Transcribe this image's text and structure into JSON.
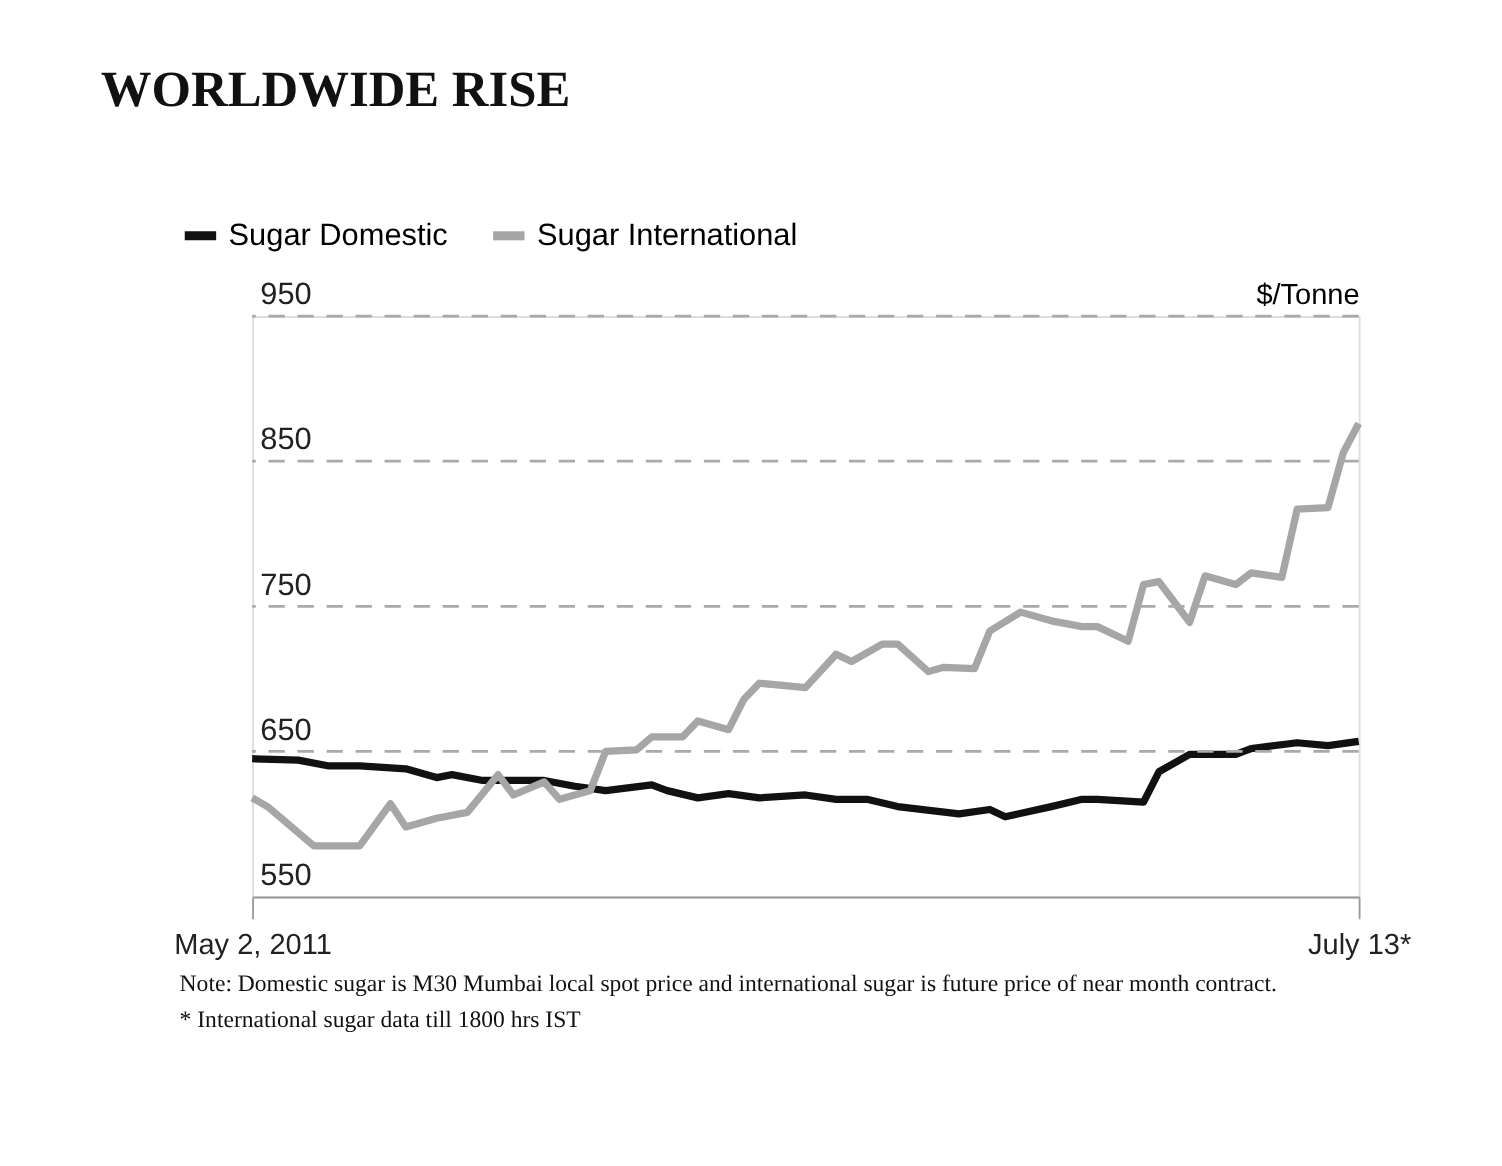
{
  "chart_data": {
    "type": "line",
    "title": "WORLDWIDE RISE",
    "ylabel": "$/Tonne",
    "xlim": [
      "2011-05-02",
      "2011-07-13"
    ],
    "xticks": [
      {
        "value": "2011-05-02",
        "label": "May 2, 2011"
      },
      {
        "value": "2011-07-13",
        "label": "July 13*"
      }
    ],
    "ylim": [
      550,
      950
    ],
    "yticks": [
      550,
      650,
      750,
      850,
      950
    ],
    "grid": "y",
    "legend": "top left",
    "series": [
      {
        "name": "Sugar Domestic",
        "color": "#111111",
        "x": [
          "2011-05-02",
          "2011-05-05",
          "2011-05-07",
          "2011-05-09",
          "2011-05-12",
          "2011-05-14",
          "2011-05-15",
          "2011-05-17",
          "2011-05-21",
          "2011-05-23",
          "2011-05-25",
          "2011-05-28",
          "2011-05-29",
          "2011-05-31",
          "2011-06-02",
          "2011-06-04",
          "2011-06-07",
          "2011-06-09",
          "2011-06-11",
          "2011-06-13",
          "2011-06-17",
          "2011-06-19",
          "2011-06-20",
          "2011-06-23",
          "2011-06-25",
          "2011-06-26",
          "2011-06-29",
          "2011-06-30",
          "2011-07-02",
          "2011-07-05",
          "2011-07-06",
          "2011-07-09",
          "2011-07-11",
          "2011-07-13"
        ],
        "values": [
          645,
          644,
          640,
          640,
          638,
          632,
          634,
          630,
          630,
          626,
          623,
          627,
          623,
          618,
          621,
          618,
          620,
          617,
          617,
          612,
          607,
          610,
          605,
          612,
          617,
          617,
          615,
          636,
          648,
          648,
          652,
          656,
          654,
          657
        ]
      },
      {
        "name": "Sugar International",
        "color": "#a6a6a6",
        "x": [
          "2011-05-02",
          "2011-05-03",
          "2011-05-06",
          "2011-05-09",
          "2011-05-11",
          "2011-05-12",
          "2011-05-14",
          "2011-05-16",
          "2011-05-18",
          "2011-05-19",
          "2011-05-21",
          "2011-05-22",
          "2011-05-24",
          "2011-05-25",
          "2011-05-27",
          "2011-05-28",
          "2011-05-30",
          "2011-05-31",
          "2011-06-02",
          "2011-06-03",
          "2011-06-04",
          "2011-06-05",
          "2011-06-07",
          "2011-06-09",
          "2011-06-10",
          "2011-06-12",
          "2011-06-13",
          "2011-06-15",
          "2011-06-16",
          "2011-06-18",
          "2011-06-19",
          "2011-06-21",
          "2011-06-23",
          "2011-06-25",
          "2011-06-26",
          "2011-06-28",
          "2011-06-29",
          "2011-06-30",
          "2011-07-02",
          "2011-07-03",
          "2011-07-05",
          "2011-07-06",
          "2011-07-08",
          "2011-07-09",
          "2011-07-11",
          "2011-07-12",
          "2011-07-13"
        ],
        "values": [
          618,
          612,
          585,
          585,
          614,
          598,
          604,
          608,
          634,
          620,
          629,
          617,
          623,
          650,
          651,
          660,
          660,
          671,
          665,
          686,
          697,
          696,
          694,
          717,
          712,
          724,
          724,
          705,
          708,
          707,
          733,
          746,
          740,
          736,
          736,
          726,
          765,
          767,
          739,
          771,
          765,
          773,
          770,
          817,
          818,
          856,
          876
        ]
      }
    ],
    "annotations": [
      "Note: Domestic sugar is M30 Mumbai local spot price and international sugar is future price of near month contract.",
      "* International sugar data till 1800 hrs IST"
    ]
  }
}
